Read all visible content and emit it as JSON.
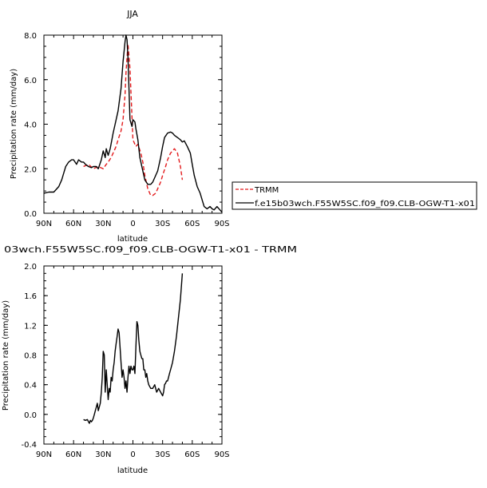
{
  "chart_data": [
    {
      "type": "line",
      "title": "JJA",
      "xlabel": "latitude",
      "ylabel": "Precipitation rate (mm/day)",
      "xlim": [
        90,
        -90
      ],
      "ylim": [
        0,
        8
      ],
      "x_ticks": [
        90,
        60,
        30,
        0,
        -30,
        -60,
        -90
      ],
      "x_tick_labels": [
        "90N",
        "60N",
        "30N",
        "0",
        "30S",
        "60S",
        "90S"
      ],
      "y_ticks": [
        0,
        2,
        4,
        6,
        8
      ],
      "y_tick_labels": [
        "0.0",
        "2.0",
        "4.0",
        "6.0",
        "8.0"
      ],
      "legend_position": "right",
      "series": [
        {
          "name": "TRMM",
          "color": "#e31a1c",
          "dash": true,
          "x": [
            50,
            45,
            40,
            35,
            30,
            27,
            25,
            22,
            20,
            17,
            15,
            12,
            10,
            8,
            7,
            5,
            3,
            0,
            -3,
            -5,
            -8,
            -10,
            -12,
            -15,
            -18,
            -20,
            -23,
            -25,
            -28,
            -30,
            -33,
            -35,
            -38,
            -40,
            -42,
            -45,
            -48,
            -50
          ],
          "y": [
            2.1,
            2.2,
            2.0,
            2.1,
            2.0,
            2.2,
            2.3,
            2.5,
            2.7,
            3.0,
            3.3,
            3.7,
            4.2,
            5.3,
            6.3,
            7.6,
            6.5,
            3.3,
            3.0,
            3.1,
            2.7,
            2.3,
            1.7,
            1.1,
            0.8,
            0.8,
            0.9,
            1.1,
            1.4,
            1.7,
            2.1,
            2.4,
            2.7,
            2.8,
            2.9,
            2.7,
            2.1,
            1.5
          ]
        },
        {
          "name": "f.e15b03wch.F55W5SC.f09_f09.CLB-OGW-T1-x01",
          "color": "#000000",
          "dash": false,
          "x": [
            90,
            85,
            80,
            75,
            72,
            70,
            68,
            65,
            62,
            60,
            57,
            55,
            52,
            50,
            48,
            45,
            42,
            40,
            37,
            35,
            32,
            30,
            28,
            27,
            25,
            23,
            20,
            18,
            15,
            12,
            10,
            8,
            7,
            6,
            5,
            3,
            1,
            0,
            -2,
            -3,
            -5,
            -7,
            -10,
            -12,
            -15,
            -18,
            -20,
            -22,
            -25,
            -28,
            -30,
            -32,
            -35,
            -38,
            -40,
            -42,
            -45,
            -48,
            -50,
            -52,
            -55,
            -58,
            -60,
            -62,
            -65,
            -68,
            -70,
            -72,
            -75,
            -78,
            -80,
            -82,
            -85,
            -88,
            -90
          ],
          "y": [
            0.9,
            0.95,
            0.95,
            1.2,
            1.5,
            1.8,
            2.1,
            2.3,
            2.4,
            2.4,
            2.2,
            2.4,
            2.3,
            2.3,
            2.2,
            2.1,
            2.05,
            2.1,
            2.1,
            2.0,
            2.4,
            2.8,
            2.5,
            2.9,
            2.6,
            2.9,
            3.6,
            4.0,
            4.6,
            5.6,
            6.8,
            7.7,
            8.0,
            7.8,
            7.0,
            4.2,
            3.9,
            4.2,
            4.1,
            3.8,
            3.3,
            2.5,
            1.9,
            1.5,
            1.3,
            1.3,
            1.4,
            1.6,
            1.9,
            2.5,
            3.0,
            3.4,
            3.6,
            3.65,
            3.6,
            3.5,
            3.4,
            3.3,
            3.2,
            3.25,
            3.0,
            2.7,
            2.2,
            1.7,
            1.2,
            0.9,
            0.6,
            0.3,
            0.2,
            0.3,
            0.2,
            0.15,
            0.3,
            0.15,
            0.05
          ]
        }
      ]
    },
    {
      "type": "line",
      "title": "03wch.F55W5SC.f09_f09.CLB-OGW-T1-x01 - TRMM",
      "xlabel": "latitude",
      "ylabel": "Precipitation rate (mm/day)",
      "xlim": [
        90,
        -90
      ],
      "ylim": [
        -0.4,
        2.0
      ],
      "x_ticks": [
        90,
        60,
        30,
        0,
        -30,
        -60,
        -90
      ],
      "x_tick_labels": [
        "90N",
        "60N",
        "30N",
        "0",
        "30S",
        "60S",
        "90S"
      ],
      "y_ticks": [
        -0.4,
        0,
        0.4,
        0.8,
        1.2,
        1.6,
        2.0
      ],
      "y_tick_labels": [
        "-0.4",
        "0.0",
        "0.4",
        "0.8",
        "1.2",
        "1.6",
        "2.0"
      ],
      "series": [
        {
          "color": "#000000",
          "dash": false,
          "x": [
            50,
            48,
            46,
            45,
            44,
            43,
            42,
            41,
            40,
            39,
            38,
            37,
            36,
            35,
            34,
            33,
            32,
            31,
            30,
            29,
            28,
            27,
            26,
            25,
            24,
            23,
            22,
            21,
            20,
            19,
            18,
            17,
            16,
            15,
            14,
            13,
            12,
            11,
            10,
            9,
            8,
            7,
            6,
            5,
            4,
            3,
            2,
            1,
            0,
            -1,
            -2,
            -3,
            -4,
            -5,
            -6,
            -7,
            -8,
            -9,
            -10,
            -11,
            -12,
            -13,
            -14,
            -15,
            -16,
            -18,
            -20,
            -22,
            -24,
            -26,
            -28,
            -30,
            -31,
            -32,
            -33,
            -34,
            -35,
            -36,
            -37,
            -38,
            -40,
            -42,
            -44,
            -46,
            -48,
            -50
          ],
          "y": [
            -0.07,
            -0.08,
            -0.07,
            -0.1,
            -0.12,
            -0.08,
            -0.1,
            -0.08,
            -0.05,
            0.0,
            0.05,
            0.1,
            0.15,
            0.05,
            0.1,
            0.15,
            0.3,
            0.5,
            0.85,
            0.8,
            0.3,
            0.6,
            0.4,
            0.2,
            0.35,
            0.3,
            0.5,
            0.45,
            0.6,
            0.7,
            0.85,
            0.95,
            1.05,
            1.15,
            1.1,
            0.9,
            0.7,
            0.5,
            0.6,
            0.5,
            0.35,
            0.45,
            0.3,
            0.5,
            0.65,
            0.55,
            0.65,
            0.6,
            0.6,
            0.65,
            0.55,
            0.9,
            1.25,
            1.2,
            1.0,
            0.85,
            0.8,
            0.75,
            0.75,
            0.6,
            0.6,
            0.5,
            0.55,
            0.45,
            0.4,
            0.35,
            0.35,
            0.4,
            0.3,
            0.35,
            0.3,
            0.25,
            0.3,
            0.4,
            0.42,
            0.45,
            0.45,
            0.5,
            0.55,
            0.6,
            0.7,
            0.85,
            1.05,
            1.3,
            1.55,
            1.9
          ]
        }
      ]
    }
  ]
}
